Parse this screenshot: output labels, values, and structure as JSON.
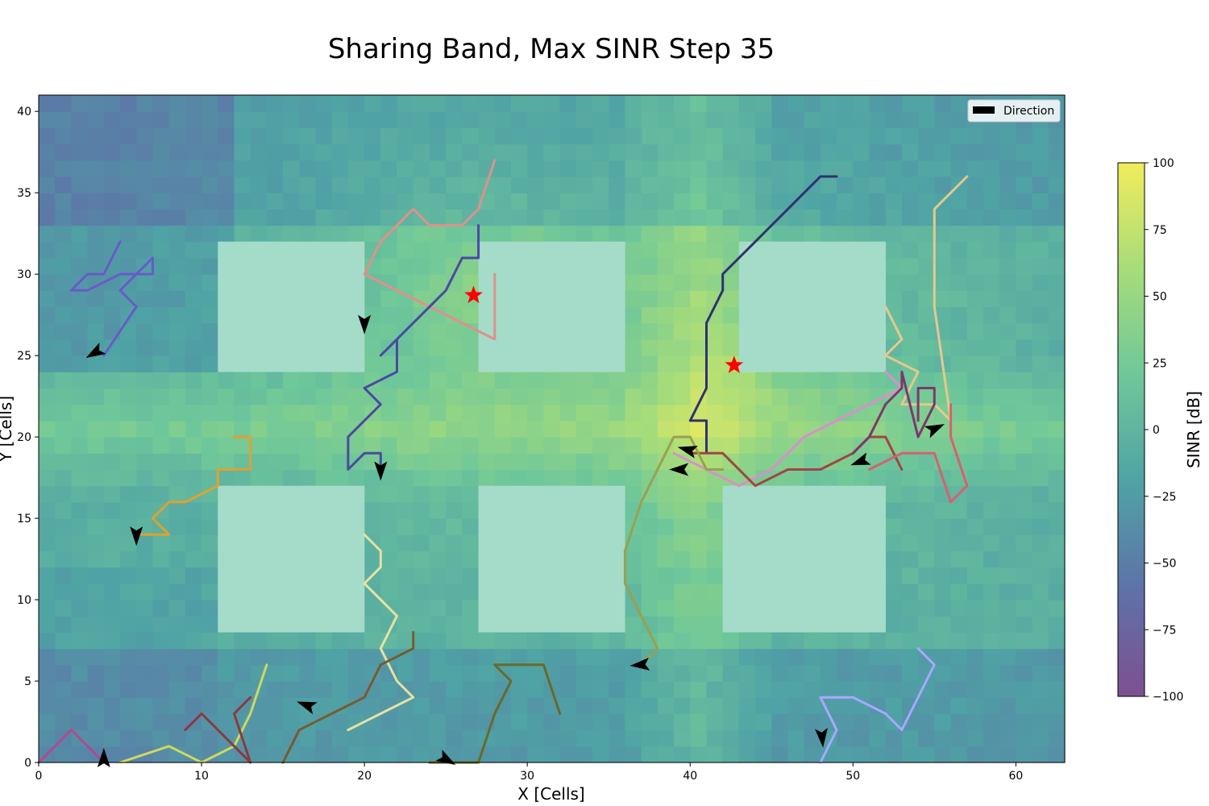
{
  "chart_data": {
    "type": "heatmap",
    "title": "Sharing Band, Max SINR Step 35",
    "xlabel": "X [Cells]",
    "ylabel": "Y [Cells]",
    "xlim": [
      0,
      63
    ],
    "ylim": [
      0,
      41
    ],
    "xticks": [
      0,
      10,
      20,
      30,
      40,
      50,
      60
    ],
    "yticks": [
      0,
      5,
      10,
      15,
      20,
      25,
      30,
      35,
      40
    ],
    "colorbar": {
      "label": "SINR [dB]",
      "range": [
        -100,
        100
      ],
      "ticks": [
        100,
        75,
        50,
        25,
        0,
        -25,
        -50,
        -75,
        -100
      ],
      "tick_labels": [
        "100",
        "75",
        "50",
        "25",
        "0",
        "−25",
        "−50",
        "−75",
        "−100"
      ],
      "colors": [
        "#7e4f90",
        "#5e72a8",
        "#4fa2a5",
        "#6ec79a",
        "#a6dc7a",
        "#f2ec5c"
      ]
    },
    "legend": {
      "placement": "top-right",
      "entries": [
        {
          "label": "Direction",
          "color": "#000000"
        }
      ]
    },
    "base_stations": [
      {
        "x": 26.7,
        "y": 28.7,
        "color": "#ff0000",
        "marker": "star"
      },
      {
        "x": 42.7,
        "y": 24.4,
        "color": "#ff0000",
        "marker": "star"
      }
    ],
    "buildings": [
      {
        "x0": 11,
        "x1": 20,
        "y0": 24,
        "y1": 32
      },
      {
        "x0": 27,
        "x1": 36,
        "y0": 24,
        "y1": 32
      },
      {
        "x0": 43,
        "x1": 52,
        "y0": 24,
        "y1": 32
      },
      {
        "x0": 11,
        "x1": 20,
        "y0": 8,
        "y1": 17
      },
      {
        "x0": 27,
        "x1": 36,
        "y0": 8,
        "y1": 17
      },
      {
        "x0": 42,
        "x1": 52,
        "y0": 8,
        "y1": 17
      }
    ],
    "series": [
      {
        "color": "#e0908c",
        "points": [
          [
            28,
            30
          ],
          [
            28,
            26
          ],
          [
            20,
            30
          ],
          [
            21,
            32
          ],
          [
            23,
            34
          ],
          [
            24,
            33
          ],
          [
            26,
            33
          ],
          [
            27,
            34
          ],
          [
            28,
            37
          ]
        ]
      },
      {
        "color": "#4a4aa0",
        "points": [
          [
            21,
            18
          ],
          [
            21,
            19
          ],
          [
            20,
            19
          ],
          [
            19,
            18
          ],
          [
            19,
            20
          ],
          [
            21,
            22
          ],
          [
            20,
            23
          ],
          [
            22,
            24
          ],
          [
            22,
            26
          ],
          [
            21,
            25
          ],
          [
            23,
            27
          ],
          [
            24,
            28
          ],
          [
            25,
            29
          ],
          [
            26,
            31
          ],
          [
            27,
            31
          ],
          [
            27,
            33
          ]
        ]
      },
      {
        "color": "#6a5ac8",
        "points": [
          [
            4,
            25
          ],
          [
            6,
            28
          ],
          [
            5,
            29
          ],
          [
            6,
            30
          ],
          [
            7,
            31
          ],
          [
            7,
            30
          ],
          [
            5,
            30
          ],
          [
            3,
            29
          ],
          [
            2,
            29
          ],
          [
            3,
            30
          ],
          [
            4,
            30
          ],
          [
            5,
            32
          ]
        ]
      },
      {
        "color": "#2f3270",
        "points": [
          [
            41,
            19
          ],
          [
            41,
            21
          ],
          [
            40,
            21
          ],
          [
            41,
            23
          ],
          [
            41,
            27
          ],
          [
            42,
            29
          ],
          [
            42,
            30
          ],
          [
            44,
            32
          ],
          [
            45,
            33
          ],
          [
            46,
            34
          ],
          [
            47,
            35
          ],
          [
            48,
            36
          ],
          [
            49,
            36
          ]
        ]
      },
      {
        "color": "#e6c88e",
        "points": [
          [
            52,
            28
          ],
          [
            53,
            26
          ],
          [
            52,
            25
          ],
          [
            54,
            24
          ],
          [
            53,
            22
          ],
          [
            55,
            22
          ],
          [
            56,
            21
          ],
          [
            55,
            28
          ],
          [
            55,
            34
          ],
          [
            57,
            36
          ]
        ]
      },
      {
        "color": "#d88fcb",
        "points": [
          [
            39,
            19
          ],
          [
            41,
            18
          ],
          [
            43,
            17
          ],
          [
            45,
            18
          ],
          [
            47,
            20
          ],
          [
            49,
            21
          ],
          [
            51,
            22
          ],
          [
            53,
            23
          ],
          [
            52,
            24
          ]
        ]
      },
      {
        "color": "#a04545",
        "points": [
          [
            40,
            19
          ],
          [
            42,
            19
          ],
          [
            44,
            17
          ],
          [
            46,
            18
          ],
          [
            48,
            18
          ],
          [
            50,
            19
          ],
          [
            51,
            20
          ],
          [
            52,
            20
          ],
          [
            53,
            18
          ]
        ]
      },
      {
        "color": "#d4626e",
        "points": [
          [
            51,
            18
          ],
          [
            53,
            19
          ],
          [
            55,
            19
          ],
          [
            56,
            16
          ],
          [
            57,
            17
          ],
          [
            56,
            20
          ],
          [
            56,
            22
          ]
        ]
      },
      {
        "color": "#7a3a6a",
        "points": [
          [
            50,
            19
          ],
          [
            51,
            20
          ],
          [
            52,
            22
          ],
          [
            53,
            23
          ],
          [
            53,
            24
          ],
          [
            54,
            20
          ],
          [
            55,
            22
          ],
          [
            55,
            23
          ],
          [
            54,
            23
          ],
          [
            54,
            21
          ]
        ]
      },
      {
        "color": "#9aa050",
        "points": [
          [
            37,
            6
          ],
          [
            38,
            7
          ],
          [
            36,
            11
          ],
          [
            36,
            13
          ],
          [
            37,
            16
          ],
          [
            38,
            18
          ],
          [
            39,
            20
          ],
          [
            40,
            20
          ],
          [
            41,
            18
          ],
          [
            42,
            18
          ]
        ]
      },
      {
        "color": "#e0a030",
        "points": [
          [
            6,
            14
          ],
          [
            8,
            14
          ],
          [
            7,
            15
          ],
          [
            8,
            16
          ],
          [
            9,
            16
          ],
          [
            11,
            17
          ],
          [
            11,
            18
          ],
          [
            13,
            18
          ],
          [
            13,
            20
          ],
          [
            12,
            20
          ]
        ]
      },
      {
        "color": "#e8e0a0",
        "points": [
          [
            20,
            14
          ],
          [
            21,
            13
          ],
          [
            21,
            12
          ],
          [
            20,
            11
          ],
          [
            21,
            10
          ],
          [
            22,
            9
          ],
          [
            21,
            7
          ],
          [
            22,
            5
          ],
          [
            23,
            4
          ],
          [
            21,
            3
          ],
          [
            19,
            2
          ]
        ]
      },
      {
        "color": "#7a5a30",
        "points": [
          [
            15,
            0
          ],
          [
            16,
            2
          ],
          [
            18,
            3
          ],
          [
            20,
            4
          ],
          [
            21,
            6
          ],
          [
            23,
            7
          ],
          [
            23,
            8
          ]
        ]
      },
      {
        "color": "#6a6a2a",
        "points": [
          [
            24,
            0
          ],
          [
            27,
            0
          ],
          [
            28,
            3
          ],
          [
            29,
            5
          ],
          [
            28,
            6
          ],
          [
            31,
            6
          ],
          [
            32,
            3
          ]
        ]
      },
      {
        "color": "#a8a8ff",
        "points": [
          [
            48,
            0
          ],
          [
            49,
            2
          ],
          [
            48,
            4
          ],
          [
            50,
            4
          ],
          [
            52,
            3
          ],
          [
            53,
            2
          ],
          [
            54,
            4
          ],
          [
            55,
            6
          ],
          [
            54,
            7
          ]
        ]
      },
      {
        "color": "#d0d860",
        "points": [
          [
            5,
            0
          ],
          [
            8,
            1
          ],
          [
            10,
            0
          ],
          [
            12,
            1
          ],
          [
            13,
            3
          ],
          [
            14,
            6
          ]
        ]
      },
      {
        "color": "#b04a90",
        "points": [
          [
            0,
            0
          ],
          [
            1,
            1
          ],
          [
            2,
            2
          ],
          [
            3,
            1
          ],
          [
            4,
            0
          ]
        ]
      },
      {
        "color": "#8a3a40",
        "points": [
          [
            9,
            2
          ],
          [
            10,
            3
          ],
          [
            12,
            1
          ],
          [
            13,
            0
          ],
          [
            12,
            3
          ],
          [
            13,
            4
          ]
        ]
      }
    ],
    "arrows": [
      {
        "x": 20.0,
        "y": 27.0,
        "angle": 270
      },
      {
        "x": 21.0,
        "y": 18.0,
        "angle": 270
      },
      {
        "x": 3.5,
        "y": 25.2,
        "angle": 210
      },
      {
        "x": 39.9,
        "y": 19.2,
        "angle": 165
      },
      {
        "x": 39.4,
        "y": 18.0,
        "angle": 180
      },
      {
        "x": 37.0,
        "y": 6.0,
        "angle": 185
      },
      {
        "x": 50.5,
        "y": 18.5,
        "angle": 200
      },
      {
        "x": 55.0,
        "y": 20.5,
        "angle": 25
      },
      {
        "x": 16.5,
        "y": 3.5,
        "angle": 160
      },
      {
        "x": 48.1,
        "y": 1.6,
        "angle": 275
      },
      {
        "x": 25.0,
        "y": 0.2,
        "angle": 330
      },
      {
        "x": 4.0,
        "y": 0.2,
        "angle": 90
      },
      {
        "x": 6.0,
        "y": 14.0,
        "angle": 270
      }
    ]
  }
}
